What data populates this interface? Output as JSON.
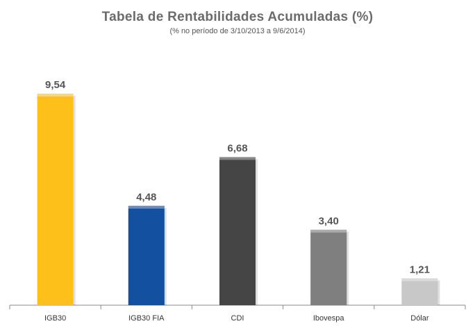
{
  "chart_data": {
    "type": "bar",
    "title": "Tabela de Rentabilidades Acumuladas (%)",
    "subtitle": "(% no período de 3/10/2013 a 9/6/2014)",
    "categories": [
      "IGB30",
      "IGB30 FIA",
      "CDI",
      "Ibovespa",
      "Dólar"
    ],
    "values": [
      9.54,
      4.48,
      6.68,
      3.4,
      1.21
    ],
    "value_labels": [
      "9,54",
      "4,48",
      "6,68",
      "3,40",
      "1,21"
    ],
    "bar_colors": [
      "#FDC01A",
      "#1450A0",
      "#454545",
      "#7F7F7F",
      "#C8C8C8"
    ],
    "xlabel": "",
    "ylabel": "",
    "ylim": [
      0,
      10.95
    ],
    "grid": false,
    "legend": "none"
  }
}
